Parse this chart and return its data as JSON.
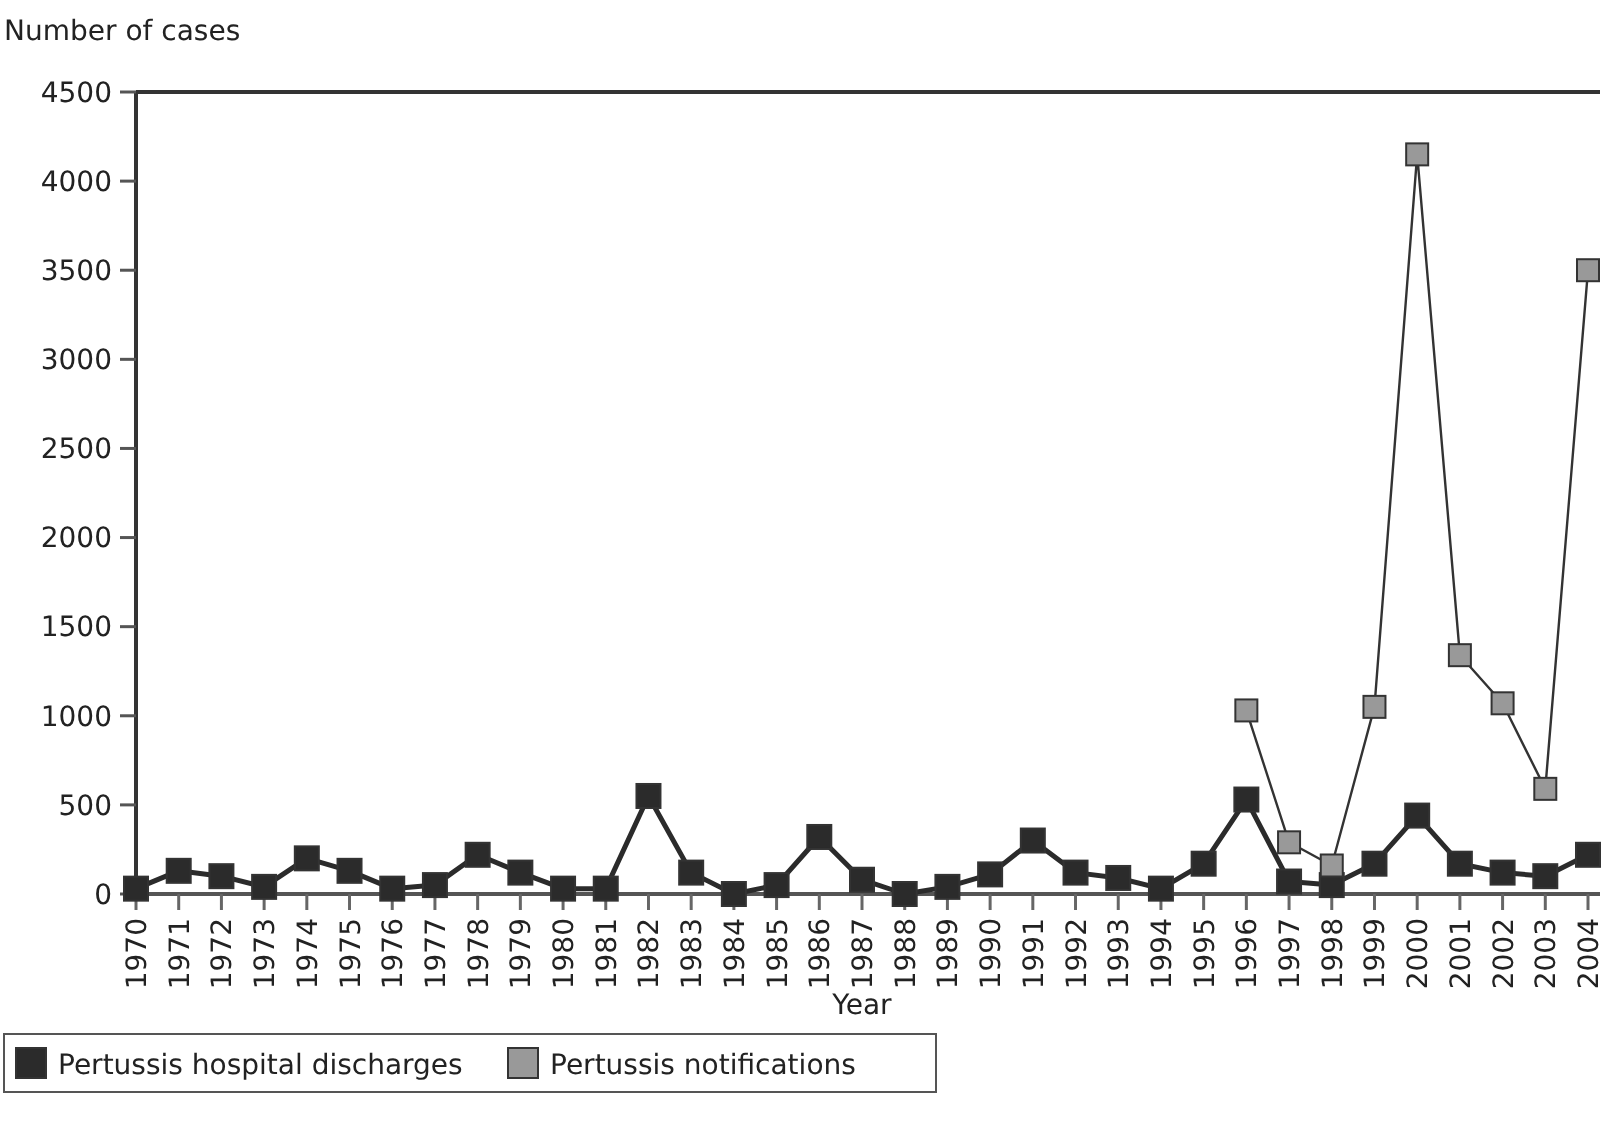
{
  "chart_data": {
    "type": "line",
    "ylabel": "Number of cases",
    "xlabel": "Year",
    "categories": [
      "1970",
      "1971",
      "1972",
      "1973",
      "1974",
      "1975",
      "1976",
      "1977",
      "1978",
      "1979",
      "1980",
      "1981",
      "1982",
      "1983",
      "1984",
      "1985",
      "1986",
      "1987",
      "1988",
      "1989",
      "1990",
      "1991",
      "1992",
      "1993",
      "1994",
      "1995",
      "1996",
      "1997",
      "1998",
      "1999",
      "2000",
      "2001",
      "2002",
      "2003",
      "2004"
    ],
    "series": [
      {
        "name": "Pertussis hospital discharges",
        "color": "#2b2b2b",
        "values": [
          30,
          130,
          100,
          40,
          200,
          130,
          30,
          50,
          220,
          120,
          30,
          30,
          550,
          120,
          0,
          50,
          320,
          80,
          0,
          40,
          110,
          300,
          120,
          90,
          30,
          170,
          530,
          70,
          50,
          170,
          440,
          170,
          120,
          100,
          220
        ]
      },
      {
        "name": "Pertussis notifications",
        "color": "#999999",
        "values": [
          null,
          null,
          null,
          null,
          null,
          null,
          null,
          null,
          null,
          null,
          null,
          null,
          null,
          null,
          null,
          null,
          null,
          null,
          null,
          null,
          null,
          null,
          null,
          null,
          null,
          null,
          1030,
          290,
          160,
          1050,
          4150,
          1340,
          1070,
          590,
          3500
        ]
      }
    ],
    "ylim": [
      0,
      4500
    ],
    "yticks": [
      0,
      500,
      1000,
      1500,
      2000,
      2500,
      3000,
      3500,
      4000,
      4500
    ],
    "marker": "square",
    "legend": "bottom",
    "grid": false
  }
}
